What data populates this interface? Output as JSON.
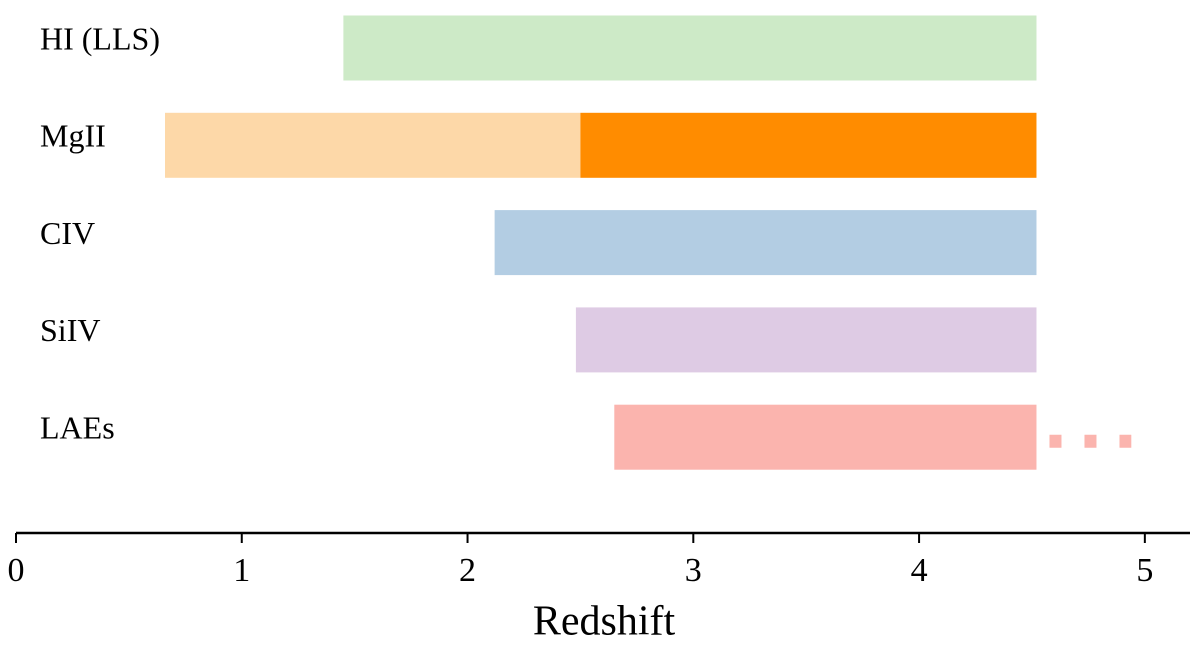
{
  "chart_data": {
    "type": "range",
    "x_label": "Redshift",
    "xlim": [
      0,
      5.2
    ],
    "xticks": [
      0,
      1,
      2,
      3,
      4,
      5
    ],
    "rows": [
      {
        "label": "HI (LLS)",
        "segments": [
          {
            "start": 1.45,
            "end": 4.52,
            "color": "#cdeac7"
          }
        ]
      },
      {
        "label": "MgII",
        "segments": [
          {
            "start": 0.66,
            "end": 2.5,
            "color": "#fdd8a8"
          },
          {
            "start": 2.5,
            "end": 4.52,
            "color": "#ff8c00"
          }
        ]
      },
      {
        "label": "CIV",
        "segments": [
          {
            "start": 2.12,
            "end": 4.52,
            "color": "#b3cde3"
          }
        ]
      },
      {
        "label": "SiIV",
        "segments": [
          {
            "start": 2.48,
            "end": 4.52,
            "color": "#decbe4"
          }
        ]
      },
      {
        "label": "LAEs",
        "segments": [
          {
            "start": 2.65,
            "end": 4.52,
            "color": "#fbb4ae"
          },
          {
            "start": 4.52,
            "end": 4.94,
            "color": "#fbb4ae",
            "style": "dotted"
          }
        ]
      }
    ]
  }
}
